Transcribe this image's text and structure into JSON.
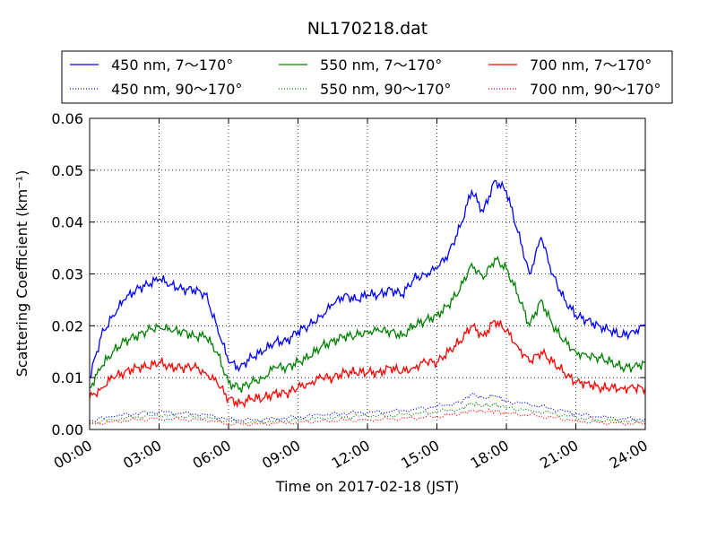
{
  "chart_data": {
    "type": "line",
    "title": "NL170218.dat",
    "xlabel": "Time on 2017-02-18 (JST)",
    "ylabel": "Scattering Coefficient (km⁻¹)",
    "x_unit": "hours",
    "xlim": [
      0,
      24
    ],
    "ylim": [
      0,
      0.06
    ],
    "xticks": [
      {
        "value": 0,
        "label": "00:00"
      },
      {
        "value": 3,
        "label": "03:00"
      },
      {
        "value": 6,
        "label": "06:00"
      },
      {
        "value": 9,
        "label": "09:00"
      },
      {
        "value": 12,
        "label": "12:00"
      },
      {
        "value": 15,
        "label": "15:00"
      },
      {
        "value": 18,
        "label": "18:00"
      },
      {
        "value": 21,
        "label": "21:00"
      },
      {
        "value": 24,
        "label": "24:00"
      }
    ],
    "yticks": [
      {
        "value": 0,
        "label": "0.00"
      },
      {
        "value": 0.01,
        "label": "0.01"
      },
      {
        "value": 0.02,
        "label": "0.02"
      },
      {
        "value": 0.03,
        "label": "0.03"
      },
      {
        "value": 0.04,
        "label": "0.04"
      },
      {
        "value": 0.05,
        "label": "0.05"
      },
      {
        "value": 0.06,
        "label": "0.06"
      }
    ],
    "grid": true,
    "legend_position": "top",
    "series": [
      {
        "name": "450 nm, 7～170°",
        "color": "#0000ff",
        "style": "solid",
        "x": [
          0,
          0.5,
          1,
          1.5,
          2,
          2.5,
          3,
          3.5,
          4,
          4.5,
          5,
          5.5,
          6,
          6.5,
          7,
          7.5,
          8,
          8.5,
          9,
          9.5,
          10,
          10.5,
          11,
          11.5,
          12,
          12.5,
          13,
          13.5,
          14,
          14.5,
          15,
          15.5,
          16,
          16.5,
          17,
          17.5,
          18,
          18.5,
          19,
          19.5,
          20,
          20.5,
          21,
          21.5,
          22,
          22.5,
          23,
          23.5,
          24
        ],
        "y": [
          0.01,
          0.018,
          0.022,
          0.025,
          0.027,
          0.028,
          0.029,
          0.028,
          0.027,
          0.027,
          0.026,
          0.02,
          0.013,
          0.012,
          0.014,
          0.015,
          0.017,
          0.017,
          0.019,
          0.02,
          0.022,
          0.024,
          0.026,
          0.025,
          0.026,
          0.026,
          0.027,
          0.026,
          0.029,
          0.03,
          0.031,
          0.034,
          0.039,
          0.046,
          0.042,
          0.048,
          0.046,
          0.038,
          0.03,
          0.037,
          0.03,
          0.025,
          0.022,
          0.021,
          0.02,
          0.019,
          0.018,
          0.019,
          0.02
        ]
      },
      {
        "name": "450 nm, 90～170°",
        "color": "#0000ff",
        "style": "dotted",
        "x": [
          0,
          1,
          2,
          3,
          4,
          5,
          6,
          7,
          8,
          9,
          10,
          11,
          12,
          13,
          14,
          15,
          16,
          16.5,
          17,
          17.5,
          18,
          19,
          20,
          21,
          22,
          23,
          24
        ],
        "y": [
          0.0017,
          0.0025,
          0.0031,
          0.0034,
          0.0031,
          0.0029,
          0.002,
          0.0018,
          0.0021,
          0.0024,
          0.0028,
          0.0031,
          0.0033,
          0.0034,
          0.0039,
          0.0045,
          0.0052,
          0.0068,
          0.0061,
          0.0065,
          0.0055,
          0.0048,
          0.004,
          0.003,
          0.0024,
          0.0021,
          0.002
        ]
      },
      {
        "name": "550 nm, 7～170°",
        "color": "#008000",
        "style": "solid",
        "x": [
          0,
          0.5,
          1,
          1.5,
          2,
          2.5,
          3,
          3.5,
          4,
          4.5,
          5,
          5.5,
          6,
          6.5,
          7,
          7.5,
          8,
          8.5,
          9,
          9.5,
          10,
          10.5,
          11,
          11.5,
          12,
          12.5,
          13,
          13.5,
          14,
          14.5,
          15,
          15.5,
          16,
          16.5,
          17,
          17.5,
          18,
          18.5,
          19,
          19.5,
          20,
          20.5,
          21,
          21.5,
          22,
          22.5,
          23,
          23.5,
          24
        ],
        "y": [
          0.008,
          0.012,
          0.015,
          0.017,
          0.018,
          0.019,
          0.02,
          0.019,
          0.019,
          0.018,
          0.018,
          0.015,
          0.009,
          0.008,
          0.009,
          0.01,
          0.012,
          0.012,
          0.013,
          0.014,
          0.016,
          0.017,
          0.018,
          0.018,
          0.019,
          0.019,
          0.019,
          0.018,
          0.02,
          0.021,
          0.022,
          0.024,
          0.027,
          0.032,
          0.029,
          0.033,
          0.031,
          0.026,
          0.02,
          0.025,
          0.02,
          0.017,
          0.015,
          0.014,
          0.014,
          0.013,
          0.012,
          0.012,
          0.013
        ]
      },
      {
        "name": "550 nm, 90～170°",
        "color": "#008000",
        "style": "dotted",
        "x": [
          0,
          1,
          2,
          3,
          4,
          5,
          6,
          7,
          8,
          9,
          10,
          11,
          12,
          13,
          14,
          15,
          16,
          16.5,
          17,
          17.5,
          18,
          19,
          20,
          21,
          22,
          23,
          24
        ],
        "y": [
          0.0013,
          0.0019,
          0.0024,
          0.0027,
          0.0025,
          0.0023,
          0.0015,
          0.0014,
          0.0016,
          0.0019,
          0.0022,
          0.0024,
          0.0026,
          0.0027,
          0.003,
          0.0034,
          0.004,
          0.005,
          0.0046,
          0.0048,
          0.0042,
          0.0037,
          0.0031,
          0.0023,
          0.0018,
          0.0016,
          0.0015
        ]
      },
      {
        "name": "700 nm, 7～170°",
        "color": "#ff0000",
        "style": "solid",
        "x": [
          0,
          0.5,
          1,
          1.5,
          2,
          2.5,
          3,
          3.5,
          4,
          4.5,
          5,
          5.5,
          6,
          6.5,
          7,
          7.5,
          8,
          8.5,
          9,
          9.5,
          10,
          10.5,
          11,
          11.5,
          12,
          12.5,
          13,
          13.5,
          14,
          14.5,
          15,
          15.5,
          16,
          16.5,
          17,
          17.5,
          18,
          18.5,
          19,
          19.5,
          20,
          20.5,
          21,
          21.5,
          22,
          22.5,
          23,
          23.5,
          24
        ],
        "y": [
          0.006,
          0.008,
          0.01,
          0.011,
          0.012,
          0.012,
          0.013,
          0.012,
          0.012,
          0.012,
          0.011,
          0.009,
          0.006,
          0.005,
          0.006,
          0.006,
          0.007,
          0.007,
          0.008,
          0.009,
          0.01,
          0.01,
          0.011,
          0.011,
          0.011,
          0.011,
          0.012,
          0.011,
          0.012,
          0.013,
          0.013,
          0.015,
          0.017,
          0.02,
          0.018,
          0.021,
          0.019,
          0.016,
          0.013,
          0.015,
          0.013,
          0.011,
          0.009,
          0.009,
          0.008,
          0.008,
          0.008,
          0.008,
          0.008
        ]
      },
      {
        "name": "700 nm, 90～170°",
        "color": "#ff0000",
        "style": "dotted",
        "x": [
          0,
          1,
          2,
          3,
          4,
          5,
          6,
          7,
          8,
          9,
          10,
          11,
          12,
          13,
          14,
          15,
          16,
          16.5,
          17,
          17.5,
          18,
          19,
          20,
          21,
          22,
          23,
          24
        ],
        "y": [
          0.001,
          0.0015,
          0.0019,
          0.0021,
          0.0019,
          0.0018,
          0.0011,
          0.001,
          0.0012,
          0.0014,
          0.0016,
          0.0018,
          0.0019,
          0.002,
          0.0022,
          0.0025,
          0.003,
          0.0037,
          0.0034,
          0.0036,
          0.0031,
          0.0028,
          0.0023,
          0.0017,
          0.0013,
          0.0012,
          0.0011
        ]
      }
    ]
  }
}
